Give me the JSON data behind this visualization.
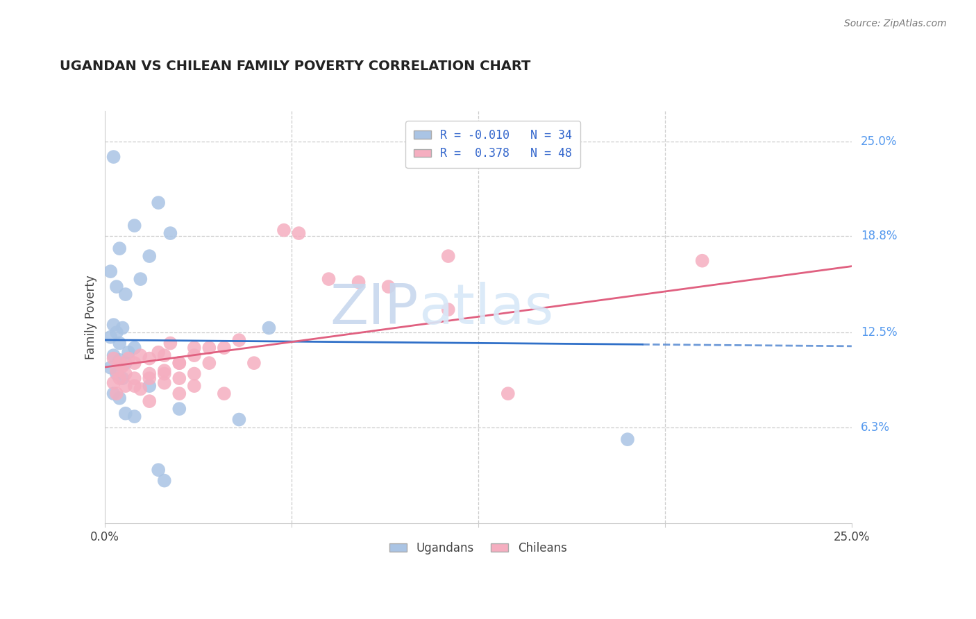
{
  "title": "UGANDAN VS CHILEAN FAMILY POVERTY CORRELATION CHART",
  "source_text": "Source: ZipAtlas.com",
  "ylabel": "Family Poverty",
  "ytick_labels": [
    "6.3%",
    "12.5%",
    "18.8%",
    "25.0%"
  ],
  "ytick_values": [
    6.3,
    12.5,
    18.8,
    25.0
  ],
  "xlim": [
    0,
    25
  ],
  "ylim": [
    0,
    27
  ],
  "ugandan_color": "#aac4e4",
  "chilean_color": "#f5aec0",
  "ugandan_line_color": "#3070c8",
  "chilean_line_color": "#e06080",
  "legend_ugandans": "Ugandans",
  "legend_chileans": "Chileans",
  "watermark_zip": "ZIP",
  "watermark_atlas": "atlas",
  "ugandan_R": -0.01,
  "ugandan_N": 34,
  "chilean_R": 0.378,
  "chilean_N": 48,
  "ugandan_scatter": [
    [
      0.3,
      24.0
    ],
    [
      1.8,
      21.0
    ],
    [
      1.0,
      19.5
    ],
    [
      2.2,
      19.0
    ],
    [
      0.5,
      18.0
    ],
    [
      1.5,
      17.5
    ],
    [
      0.2,
      16.5
    ],
    [
      1.2,
      16.0
    ],
    [
      0.4,
      15.5
    ],
    [
      0.7,
      15.0
    ],
    [
      0.3,
      13.0
    ],
    [
      0.6,
      12.8
    ],
    [
      0.4,
      12.5
    ],
    [
      0.2,
      12.2
    ],
    [
      0.5,
      11.8
    ],
    [
      1.0,
      11.5
    ],
    [
      0.8,
      11.2
    ],
    [
      5.5,
      12.8
    ],
    [
      0.3,
      11.0
    ],
    [
      0.5,
      10.7
    ],
    [
      0.7,
      10.5
    ],
    [
      0.2,
      10.2
    ],
    [
      0.4,
      9.8
    ],
    [
      0.6,
      9.5
    ],
    [
      1.5,
      9.0
    ],
    [
      0.3,
      8.5
    ],
    [
      0.5,
      8.2
    ],
    [
      2.5,
      7.5
    ],
    [
      1.0,
      7.0
    ],
    [
      0.7,
      7.2
    ],
    [
      4.5,
      6.8
    ],
    [
      1.8,
      3.5
    ],
    [
      2.0,
      2.8
    ],
    [
      17.5,
      5.5
    ]
  ],
  "chilean_scatter": [
    [
      0.3,
      10.8
    ],
    [
      0.5,
      10.5
    ],
    [
      0.6,
      10.3
    ],
    [
      0.8,
      10.8
    ],
    [
      1.0,
      10.5
    ],
    [
      1.2,
      11.0
    ],
    [
      1.5,
      10.8
    ],
    [
      1.8,
      11.2
    ],
    [
      2.0,
      11.0
    ],
    [
      2.5,
      10.5
    ],
    [
      3.0,
      11.5
    ],
    [
      0.4,
      10.0
    ],
    [
      0.7,
      9.8
    ],
    [
      1.0,
      9.5
    ],
    [
      1.5,
      9.8
    ],
    [
      2.0,
      10.0
    ],
    [
      2.5,
      10.5
    ],
    [
      3.0,
      11.0
    ],
    [
      0.3,
      9.2
    ],
    [
      0.5,
      9.5
    ],
    [
      1.0,
      9.0
    ],
    [
      1.5,
      9.5
    ],
    [
      2.0,
      9.8
    ],
    [
      2.5,
      9.5
    ],
    [
      3.5,
      11.5
    ],
    [
      0.4,
      8.5
    ],
    [
      0.7,
      9.0
    ],
    [
      1.2,
      8.8
    ],
    [
      2.0,
      9.2
    ],
    [
      3.0,
      9.8
    ],
    [
      2.2,
      11.8
    ],
    [
      3.5,
      10.5
    ],
    [
      4.0,
      11.5
    ],
    [
      1.5,
      8.0
    ],
    [
      2.5,
      8.5
    ],
    [
      3.0,
      9.0
    ],
    [
      4.5,
      12.0
    ],
    [
      4.0,
      8.5
    ],
    [
      5.0,
      10.5
    ],
    [
      8.5,
      15.8
    ],
    [
      9.5,
      15.5
    ],
    [
      6.0,
      19.2
    ],
    [
      6.5,
      19.0
    ],
    [
      7.5,
      16.0
    ],
    [
      11.5,
      17.5
    ],
    [
      11.5,
      14.0
    ],
    [
      20.0,
      17.2
    ],
    [
      13.5,
      8.5
    ]
  ]
}
